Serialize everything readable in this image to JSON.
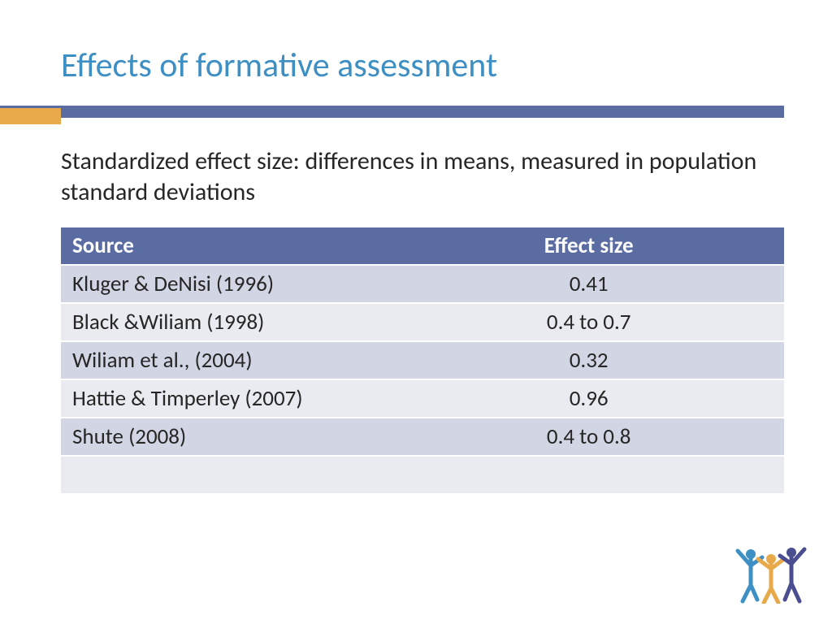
{
  "title": "Effects of formative assessment",
  "title_color": "#3e8fc3",
  "divider_color": "#5b6ca3",
  "accent_color": "#e8a94a",
  "subtitle": "Standardized effect size: differences in means, measured in population standard deviations",
  "subtitle_color": "#262626",
  "table": {
    "header_bg": "#5b6ca3",
    "header_text_color": "#ffffff",
    "row_alt1_bg": "#d2d5e4",
    "row_alt2_bg": "#eaebf1",
    "text_color": "#262626",
    "columns": [
      "Source",
      "Effect size"
    ],
    "rows": [
      [
        "Kluger & DeNisi (1996)",
        "0.41"
      ],
      [
        "Black &Wiliam (1998)",
        "0.4 to 0.7"
      ],
      [
        "Wiliam et al., (2004)",
        "0.32"
      ],
      [
        "Hattie & Timperley (2007)",
        "0.96"
      ],
      [
        "Shute (2008)",
        "0.4 to 0.8"
      ],
      [
        "",
        ""
      ]
    ]
  },
  "logo_colors": {
    "left": "#3e8fc3",
    "middle": "#e8a94a",
    "right": "#4a4d8f"
  }
}
